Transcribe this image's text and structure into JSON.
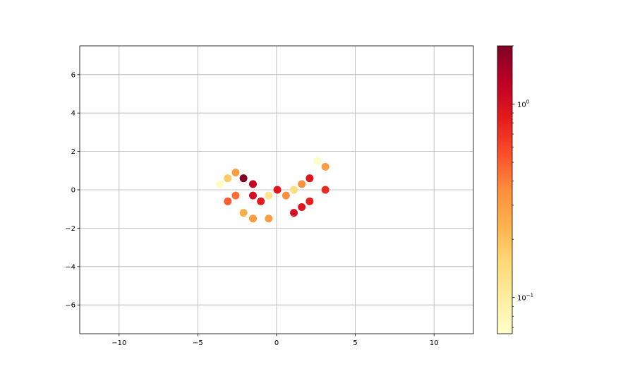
{
  "chart_data": {
    "type": "scatter",
    "title": "",
    "xlabel": "",
    "ylabel": "",
    "xlim": [
      -12.5,
      12.5
    ],
    "ylim": [
      -7.5,
      7.5
    ],
    "grid": true,
    "x_ticks": [
      -10,
      -5,
      0,
      5,
      10
    ],
    "x_tick_labels": [
      "−10",
      "−5",
      "0",
      "5",
      "10"
    ],
    "y_ticks": [
      -6,
      -4,
      -2,
      0,
      2,
      4,
      6
    ],
    "y_tick_labels": [
      "−6",
      "−4",
      "−2",
      "0",
      "2",
      "4",
      "6"
    ],
    "colormap": "YlOrRd",
    "colorbar": {
      "scale": "log",
      "range": [
        0.065,
        2.0
      ],
      "ticks": [
        {
          "value": 1.0,
          "label_base": "10",
          "label_exp": "0"
        },
        {
          "value": 0.1,
          "label_base": "10",
          "label_exp": "−1"
        }
      ]
    },
    "points": [
      {
        "x": -3.6,
        "y": 0.3,
        "c": 0.07
      },
      {
        "x": -3.1,
        "y": 0.6,
        "c": 0.18
      },
      {
        "x": -2.6,
        "y": 0.9,
        "c": 0.3
      },
      {
        "x": -2.1,
        "y": 0.6,
        "c": 2.0
      },
      {
        "x": -1.5,
        "y": 0.3,
        "c": 1.2
      },
      {
        "x": -3.1,
        "y": -0.6,
        "c": 0.5
      },
      {
        "x": -2.6,
        "y": -0.3,
        "c": 0.45
      },
      {
        "x": -1.5,
        "y": -0.3,
        "c": 1.0
      },
      {
        "x": -1.0,
        "y": -0.6,
        "c": 0.85
      },
      {
        "x": -0.5,
        "y": -0.3,
        "c": 0.12
      },
      {
        "x": -2.1,
        "y": -1.2,
        "c": 0.25
      },
      {
        "x": -1.5,
        "y": -1.5,
        "c": 0.3
      },
      {
        "x": -0.5,
        "y": -1.5,
        "c": 0.3
      },
      {
        "x": 0.05,
        "y": 0.0,
        "c": 0.9
      },
      {
        "x": 0.6,
        "y": -0.3,
        "c": 0.35
      },
      {
        "x": 1.1,
        "y": 0.0,
        "c": 0.14
      },
      {
        "x": 1.6,
        "y": 0.3,
        "c": 0.35
      },
      {
        "x": 2.1,
        "y": 0.6,
        "c": 0.9
      },
      {
        "x": 2.6,
        "y": 1.5,
        "c": 0.07
      },
      {
        "x": 3.1,
        "y": 1.2,
        "c": 0.3
      },
      {
        "x": 3.1,
        "y": 0.0,
        "c": 0.75
      },
      {
        "x": 1.1,
        "y": -1.2,
        "c": 1.0
      },
      {
        "x": 1.6,
        "y": -0.9,
        "c": 0.9
      },
      {
        "x": 2.1,
        "y": -0.6,
        "c": 0.8
      }
    ]
  }
}
